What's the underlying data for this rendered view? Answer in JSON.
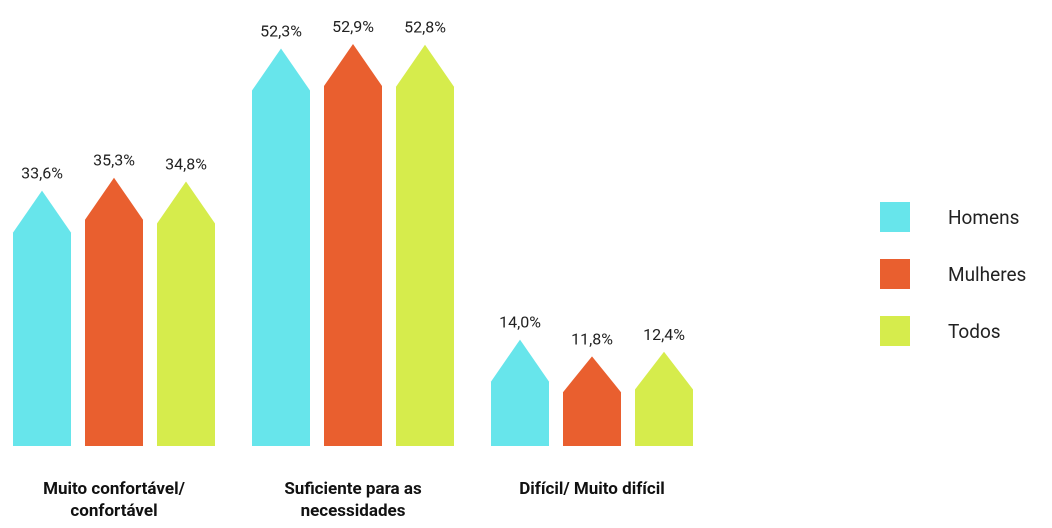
{
  "chart_data": {
    "type": "bar",
    "categories": [
      "Muito confortável/ confortável",
      "Suficiente para as necessidades",
      "Difícil/ Muito difícil"
    ],
    "series": [
      {
        "name": "Homens",
        "color": "#67e5eb",
        "values": [
          33.6,
          52.3,
          14.0
        ],
        "value_labels": [
          "33,6%",
          "52,3%",
          "14,0%"
        ]
      },
      {
        "name": "Mulheres",
        "color": "#e95f2f",
        "values": [
          35.3,
          52.9,
          11.8
        ],
        "value_labels": [
          "35,3%",
          "52,9%",
          "11,8%"
        ]
      },
      {
        "name": "Todos",
        "color": "#d6ec4c",
        "values": [
          34.8,
          52.8,
          12.4
        ],
        "value_labels": [
          "34,8%",
          "52,8%",
          "12,4%"
        ]
      }
    ],
    "legend": "right"
  }
}
